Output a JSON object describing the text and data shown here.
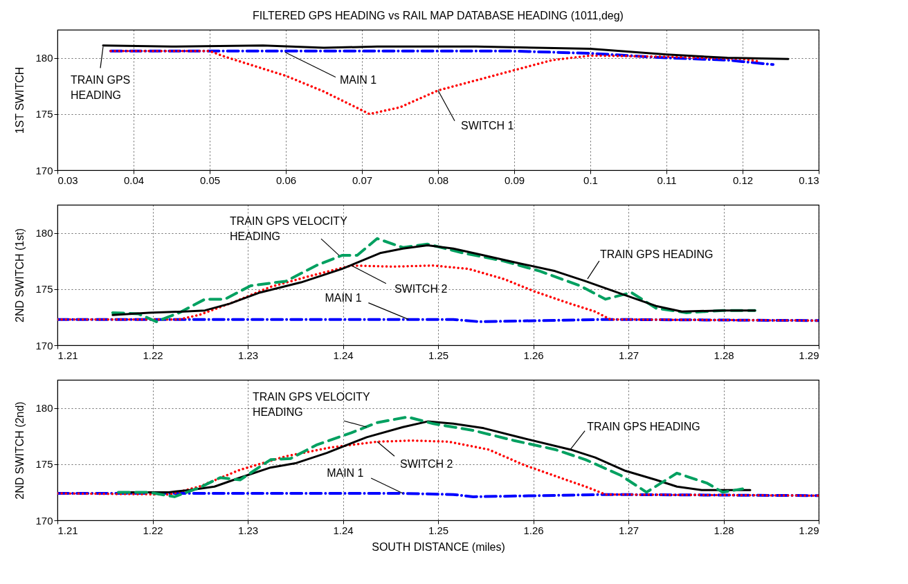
{
  "chart_data": [
    {
      "type": "line",
      "title": "FILTERED GPS HEADING vs RAIL MAP DATABASE HEADING (1011,deg)",
      "ylabel": "1ST SWITCH",
      "xlim": [
        0.03,
        0.13
      ],
      "xticks": [
        0.03,
        0.04,
        0.05,
        0.06,
        0.07,
        0.08,
        0.09,
        0.1,
        0.11,
        0.12,
        0.13
      ],
      "ylim": [
        170,
        182.5
      ],
      "yticks": [
        170,
        175,
        180
      ],
      "grid": true,
      "marker": "none",
      "series": [
        {
          "color": "#0000ff",
          "line_style": "dashdot",
          "x": [
            0.037,
            0.06,
            0.08,
            0.09,
            0.1,
            0.11,
            0.118,
            0.124
          ],
          "values": [
            180.6,
            180.6,
            180.6,
            180.6,
            180.4,
            180.0,
            179.8,
            179.4
          ]
        },
        {
          "color": "#ff0000",
          "line_style": "dotted",
          "x": [
            0.037,
            0.05,
            0.052,
            0.06,
            0.065,
            0.071,
            0.075,
            0.08,
            0.09,
            0.095,
            0.1,
            0.11,
            0.12,
            0.122
          ],
          "values": [
            180.6,
            180.6,
            180.1,
            178.4,
            177.0,
            175.0,
            175.6,
            177.1,
            178.9,
            179.8,
            180.2,
            180.1,
            179.9,
            179.7
          ]
        },
        {
          "color": "#000000",
          "line_style": "solid",
          "x": [
            0.036,
            0.045,
            0.057,
            0.065,
            0.072,
            0.085,
            0.1,
            0.11,
            0.118,
            0.126
          ],
          "values": [
            181.1,
            181.0,
            181.1,
            180.9,
            181.0,
            181.0,
            180.8,
            180.3,
            180.0,
            179.9
          ]
        }
      ],
      "annotations": [
        {
          "text": "TRAIN GPS\nHEADING",
          "x": 0.036,
          "y": 181.0
        },
        {
          "text": "MAIN 1",
          "x": 0.0599,
          "y": 180.5
        },
        {
          "text": "SWITCH 1",
          "x": 0.08,
          "y": 177.1
        }
      ]
    },
    {
      "type": "line",
      "ylabel": "2ND SWITCH (1st)",
      "xlim": [
        1.21,
        1.29
      ],
      "xticks": [
        1.21,
        1.22,
        1.23,
        1.24,
        1.25,
        1.26,
        1.27,
        1.28,
        1.29
      ],
      "ylim": [
        170,
        182.5
      ],
      "yticks": [
        170,
        175,
        180
      ],
      "grid": true,
      "marker": "none",
      "series": [
        {
          "color": "#0000ff",
          "line_style": "dashdot",
          "x": [
            1.21,
            1.2463,
            1.2516,
            1.2543,
            1.2676,
            1.29
          ],
          "values": [
            172.3,
            172.3,
            172.3,
            172.1,
            172.3,
            172.2
          ]
        },
        {
          "color": "#ff0000",
          "line_style": "dotted",
          "x": [
            1.21,
            1.2228,
            1.2249,
            1.2287,
            1.2324,
            1.2367,
            1.2409,
            1.2452,
            1.2495,
            1.2532,
            1.2569,
            1.2601,
            1.2639,
            1.2665,
            1.2681,
            1.29
          ],
          "values": [
            172.3,
            172.3,
            172.7,
            173.9,
            175.2,
            176.2,
            177.1,
            177.0,
            177.1,
            176.8,
            175.9,
            174.8,
            173.7,
            173.0,
            172.3,
            172.2
          ]
        },
        {
          "color": "#00a060",
          "line_style": "dashed",
          "x": [
            1.2158,
            1.2185,
            1.2204,
            1.2228,
            1.2255,
            1.2276,
            1.2303,
            1.234,
            1.2372,
            1.2399,
            1.2415,
            1.2436,
            1.2463,
            1.2489,
            1.2527,
            1.2569,
            1.2607,
            1.2649,
            1.2676,
            1.2703,
            1.2729,
            1.2761,
            1.2799,
            1.2833
          ],
          "values": [
            172.9,
            172.8,
            172.1,
            172.9,
            174.1,
            174.1,
            175.3,
            175.7,
            177.1,
            178.0,
            178.0,
            179.5,
            178.7,
            179.0,
            178.2,
            177.5,
            176.6,
            175.3,
            174.1,
            174.7,
            173.3,
            172.9,
            173.1,
            173.1
          ]
        },
        {
          "color": "#000000",
          "line_style": "solid",
          "x": [
            1.2158,
            1.2196,
            1.2233,
            1.2255,
            1.2281,
            1.2313,
            1.2356,
            1.2399,
            1.2439,
            1.2463,
            1.2489,
            1.2516,
            1.2548,
            1.2585,
            1.2623,
            1.2655,
            1.2692,
            1.2729,
            1.2756,
            1.2799,
            1.2833
          ],
          "values": [
            172.7,
            172.9,
            173.0,
            173.1,
            173.7,
            174.7,
            175.6,
            176.8,
            178.2,
            178.6,
            178.9,
            178.6,
            178.0,
            177.3,
            176.6,
            175.7,
            174.6,
            173.5,
            173.0,
            173.1,
            173.1
          ]
        }
      ],
      "annotations": [
        {
          "text": "TRAIN GPS VELOCITY\nHEADING",
          "x": 1.2396,
          "y": 178.0
        },
        {
          "text": "TRAIN GPS HEADING",
          "x": 1.2657,
          "y": 175.9
        },
        {
          "text": "SWITCH 2",
          "x": 1.2409,
          "y": 177.1
        },
        {
          "text": "MAIN 1",
          "x": 1.2469,
          "y": 172.3
        }
      ]
    },
    {
      "type": "line",
      "ylabel": "2ND SWITCH (2nd)",
      "xlabel": "SOUTH DISTANCE (miles)",
      "xlim": [
        1.21,
        1.29
      ],
      "xticks": [
        1.21,
        1.22,
        1.23,
        1.24,
        1.25,
        1.26,
        1.27,
        1.28,
        1.29
      ],
      "ylim": [
        170,
        182.5
      ],
      "yticks": [
        170,
        175,
        180
      ],
      "grid": true,
      "marker": "none",
      "series": [
        {
          "color": "#0000ff",
          "line_style": "dashdot",
          "x": [
            1.21,
            1.2463,
            1.2516,
            1.2537,
            1.2676,
            1.29
          ],
          "values": [
            172.4,
            172.4,
            172.3,
            172.1,
            172.3,
            172.2
          ]
        },
        {
          "color": "#ff0000",
          "line_style": "dotted",
          "x": [
            1.21,
            1.2217,
            1.2249,
            1.2292,
            1.234,
            1.2388,
            1.2436,
            1.2473,
            1.2511,
            1.2553,
            1.2591,
            1.2628,
            1.2655,
            1.2676,
            1.29
          ],
          "values": [
            172.4,
            172.3,
            173.0,
            174.5,
            175.7,
            176.5,
            177.0,
            177.1,
            177.0,
            176.3,
            174.9,
            173.8,
            173.0,
            172.3,
            172.2
          ]
        },
        {
          "color": "#000000",
          "line_style": "solid",
          "x": [
            1.2164,
            1.2217,
            1.2239,
            1.2265,
            1.2292,
            1.2324,
            1.2351,
            1.2383,
            1.2425,
            1.2463,
            1.2489,
            1.2516,
            1.2548,
            1.2585,
            1.2639,
            1.2665,
            1.2697,
            1.2729,
            1.2751,
            1.2777,
            1.2828
          ],
          "values": [
            172.5,
            172.5,
            172.7,
            173.0,
            173.8,
            174.7,
            175.1,
            176.0,
            177.4,
            178.3,
            178.8,
            178.6,
            178.2,
            177.4,
            176.3,
            175.6,
            174.4,
            173.6,
            173.0,
            172.7,
            172.7
          ]
        },
        {
          "color": "#00a060",
          "line_style": "dashed",
          "x": [
            1.2164,
            1.2196,
            1.2223,
            1.2249,
            1.2271,
            1.2292,
            1.2324,
            1.2345,
            1.2372,
            1.2409,
            1.2436,
            1.2468,
            1.2495,
            1.2537,
            1.258,
            1.2623,
            1.2655,
            1.2692,
            1.2719,
            1.2751,
            1.2783,
            1.2799,
            1.282
          ],
          "values": [
            172.5,
            172.5,
            172.1,
            172.9,
            173.8,
            173.6,
            175.4,
            175.5,
            176.7,
            177.8,
            178.7,
            179.2,
            178.6,
            178.0,
            177.1,
            176.3,
            175.4,
            174.0,
            172.5,
            174.2,
            173.3,
            172.5,
            172.8
          ]
        }
      ],
      "annotations": [
        {
          "text": "TRAIN GPS VELOCITY\nHEADING",
          "x": 1.2425,
          "y": 178.3
        },
        {
          "text": "TRAIN GPS HEADING",
          "x": 1.2639,
          "y": 176.3
        },
        {
          "text": "SWITCH 2",
          "x": 1.2436,
          "y": 177.0
        },
        {
          "text": "MAIN 1",
          "x": 1.2463,
          "y": 172.4
        }
      ]
    }
  ]
}
